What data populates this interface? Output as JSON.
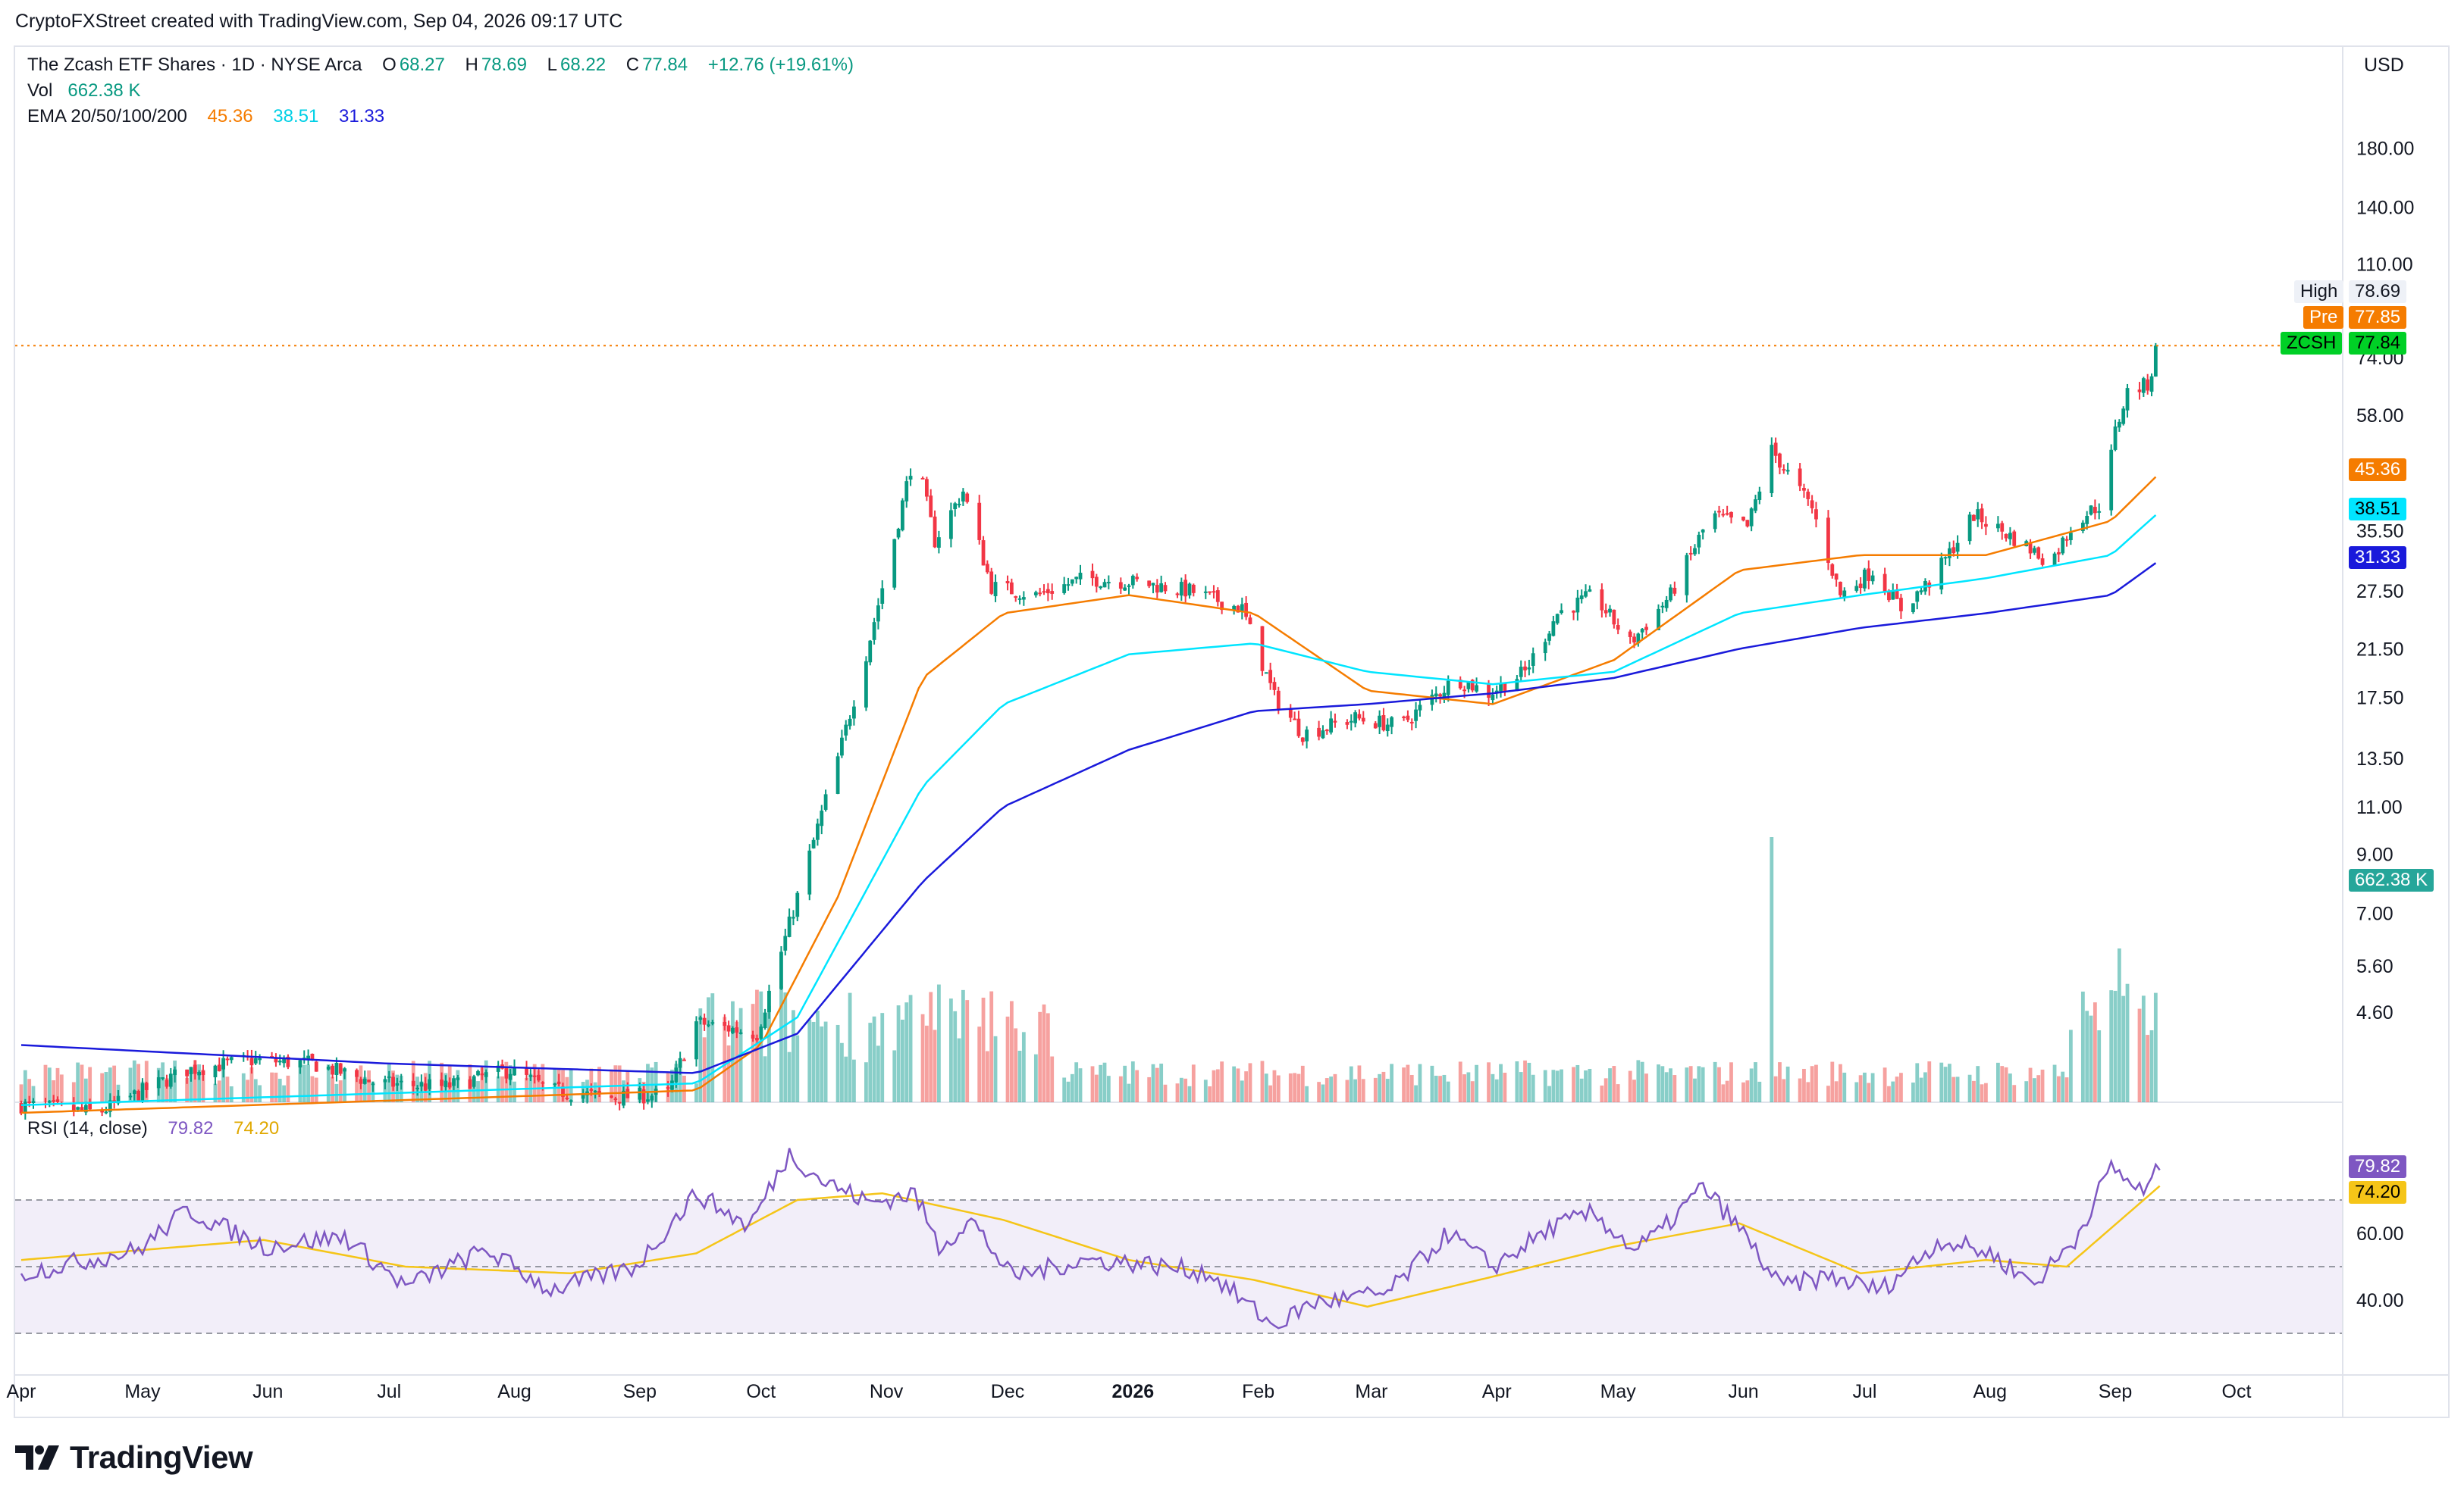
{
  "header": {
    "caption": "CryptoFXStreet created with TradingView.com, Sep 04, 2026 09:17 UTC"
  },
  "legend": {
    "symbol": "The Zcash ETF Shares · 1D · NYSE Arca",
    "o_label": "O",
    "o_value": "68.27",
    "h_label": "H",
    "h_value": "78.69",
    "l_label": "L",
    "l_value": "68.22",
    "c_label": "C",
    "c_value": "77.84",
    "change": "+12.76 (+19.61%)",
    "vol_label": "Vol",
    "vol_value": "662.38 K",
    "ema_label": "EMA 20/50/100/200",
    "ema20": "45.36",
    "ema50": "38.51",
    "ema100": "31.33"
  },
  "rsi_legend": {
    "label": "RSI (14, close)",
    "rsi": "79.82",
    "ma": "74.20"
  },
  "currency": "USD",
  "tags": {
    "high_label": "High",
    "high_value": "78.69",
    "pre_label": "Pre",
    "pre_value": "77.85",
    "ticker": "ZCSH",
    "last_value": "77.84",
    "ema20": "45.36",
    "ema50": "38.51",
    "ema100": "31.33",
    "volume": "662.38 K",
    "rsi": "79.82",
    "rsi_ma": "74.20"
  },
  "colors": {
    "up": "#089981",
    "down": "#f23645",
    "ema20": "#f57c00",
    "ema50": "#00e5ff",
    "ema100": "#1a1adb",
    "rsi": "#7e57c2",
    "rsi_ma": "#f5c518",
    "pre": "#f57c00",
    "last": "#00d026"
  },
  "footer": {
    "brand": "TradingView",
    "logo_icon": "tradingview-logo-icon"
  },
  "chart_data": {
    "type": "candlestick",
    "price_scale": "log",
    "price_ticks": [
      "180.00",
      "140.00",
      "110.00",
      "74.00",
      "58.00",
      "35.50",
      "27.50",
      "21.50",
      "17.50",
      "13.50",
      "11.00",
      "9.00",
      "7.00",
      "5.60",
      "4.60"
    ],
    "rsi_ticks": [
      "60.00",
      "40.00"
    ],
    "rsi_bands": [
      70,
      50,
      30
    ],
    "x_ticks": [
      "Apr",
      "May",
      "Jun",
      "Jul",
      "Aug",
      "Sep",
      "Oct",
      "Nov",
      "Dec",
      "2026",
      "Feb",
      "Mar",
      "Apr",
      "May",
      "Jun",
      "Jul",
      "Aug",
      "Sep",
      "Oct"
    ],
    "price_anchors": [
      [
        "2025-04-01",
        3.1
      ],
      [
        "2025-04-20",
        3.0
      ],
      [
        "2025-05-12",
        3.6
      ],
      [
        "2025-05-28",
        3.75
      ],
      [
        "2025-06-12",
        3.7
      ],
      [
        "2025-06-28",
        3.4
      ],
      [
        "2025-07-15",
        3.35
      ],
      [
        "2025-07-31",
        3.6
      ],
      [
        "2025-08-10",
        3.3
      ],
      [
        "2025-08-25",
        3.2
      ],
      [
        "2025-09-08",
        3.25
      ],
      [
        "2025-09-15",
        4.4
      ],
      [
        "2025-09-30",
        4.2
      ],
      [
        "2025-10-07",
        6.3
      ],
      [
        "2025-10-20",
        13.5
      ],
      [
        "2025-10-27",
        21.0
      ],
      [
        "2025-11-04",
        37.0
      ],
      [
        "2025-11-08",
        50.0
      ],
      [
        "2025-11-13",
        34.0
      ],
      [
        "2025-11-20",
        42.0
      ],
      [
        "2025-11-27",
        28.0
      ],
      [
        "2025-12-08",
        27.0
      ],
      [
        "2025-12-20",
        29.0
      ],
      [
        "2026-01-02",
        28.5
      ],
      [
        "2026-01-15",
        27.5
      ],
      [
        "2026-01-28",
        25.5
      ],
      [
        "2026-02-05",
        17.5
      ],
      [
        "2026-02-12",
        15.0
      ],
      [
        "2026-02-25",
        16.0
      ],
      [
        "2026-03-08",
        15.5
      ],
      [
        "2026-03-22",
        19.0
      ],
      [
        "2026-03-30",
        17.8
      ],
      [
        "2026-04-08",
        19.5
      ],
      [
        "2026-04-16",
        25.0
      ],
      [
        "2026-04-25",
        27.0
      ],
      [
        "2026-05-04",
        22.0
      ],
      [
        "2026-05-14",
        27.0
      ],
      [
        "2026-05-24",
        38.0
      ],
      [
        "2026-06-02",
        36.0
      ],
      [
        "2026-06-08",
        50.0
      ],
      [
        "2026-06-18",
        39.0
      ],
      [
        "2026-06-25",
        27.0
      ],
      [
        "2026-07-03",
        30.0
      ],
      [
        "2026-07-10",
        25.5
      ],
      [
        "2026-07-18",
        29.0
      ],
      [
        "2026-07-28",
        38.0
      ],
      [
        "2026-08-08",
        34.0
      ],
      [
        "2026-08-16",
        31.0
      ],
      [
        "2026-08-22",
        37.0
      ],
      [
        "2026-08-29",
        40.0
      ],
      [
        "2026-09-01",
        54.0
      ],
      [
        "2026-09-04",
        64.0
      ],
      [
        "2026-09-09",
        66.0
      ],
      [
        "2026-09-12",
        77.84
      ]
    ],
    "ema_anchors": {
      "ema20": [
        [
          "2025-04-01",
          3.0
        ],
        [
          "2025-09-15",
          3.3
        ],
        [
          "2025-10-01",
          4.0
        ],
        [
          "2025-10-20",
          7.5
        ],
        [
          "2025-11-10",
          19.0
        ],
        [
          "2025-11-30",
          25.0
        ],
        [
          "2025-12-31",
          27.0
        ],
        [
          "2026-01-31",
          25.0
        ],
        [
          "2026-02-28",
          18.0
        ],
        [
          "2026-03-31",
          17.0
        ],
        [
          "2026-04-30",
          20.5
        ],
        [
          "2026-05-31",
          30.0
        ],
        [
          "2026-06-30",
          32.0
        ],
        [
          "2026-07-31",
          32.0
        ],
        [
          "2026-08-31",
          37.0
        ],
        [
          "2026-09-12",
          45.36
        ]
      ],
      "ema50": [
        [
          "2025-04-01",
          3.1
        ],
        [
          "2025-09-15",
          3.4
        ],
        [
          "2025-10-10",
          4.5
        ],
        [
          "2025-11-10",
          12.0
        ],
        [
          "2025-11-30",
          17.0
        ],
        [
          "2025-12-31",
          21.0
        ],
        [
          "2026-01-31",
          22.0
        ],
        [
          "2026-02-28",
          19.5
        ],
        [
          "2026-03-31",
          18.5
        ],
        [
          "2026-04-30",
          19.5
        ],
        [
          "2026-05-31",
          25.0
        ],
        [
          "2026-06-30",
          27.0
        ],
        [
          "2026-07-31",
          29.0
        ],
        [
          "2026-08-31",
          32.0
        ],
        [
          "2026-09-12",
          38.51
        ]
      ],
      "ema100": [
        [
          "2025-04-01",
          4.0
        ],
        [
          "2025-06-30",
          3.7
        ],
        [
          "2025-09-15",
          3.55
        ],
        [
          "2025-10-10",
          4.2
        ],
        [
          "2025-11-10",
          8.0
        ],
        [
          "2025-11-30",
          11.0
        ],
        [
          "2025-12-31",
          14.0
        ],
        [
          "2026-01-31",
          16.5
        ],
        [
          "2026-02-28",
          17.0
        ],
        [
          "2026-03-31",
          17.8
        ],
        [
          "2026-04-30",
          19.0
        ],
        [
          "2026-05-31",
          21.5
        ],
        [
          "2026-06-30",
          23.5
        ],
        [
          "2026-07-31",
          25.0
        ],
        [
          "2026-08-31",
          27.0
        ],
        [
          "2026-09-12",
          31.33
        ]
      ]
    },
    "rsi_anchors": [
      [
        "2025-04-01",
        48
      ],
      [
        "2025-04-30",
        55
      ],
      [
        "2025-05-12",
        67
      ],
      [
        "2025-05-31",
        56
      ],
      [
        "2025-06-20",
        59
      ],
      [
        "2025-07-05",
        44
      ],
      [
        "2025-07-25",
        55
      ],
      [
        "2025-08-10",
        43
      ],
      [
        "2025-08-31",
        50
      ],
      [
        "2025-09-15",
        72
      ],
      [
        "2025-09-28",
        62
      ],
      [
        "2025-10-08",
        84
      ],
      [
        "2025-10-16",
        76
      ],
      [
        "2025-10-28",
        69
      ],
      [
        "2025-11-08",
        72
      ],
      [
        "2025-11-14",
        56
      ],
      [
        "2025-11-22",
        64
      ],
      [
        "2025-12-02",
        47
      ],
      [
        "2025-12-20",
        52
      ],
      [
        "2026-01-03",
        51
      ],
      [
        "2026-01-20",
        48
      ],
      [
        "2026-02-05",
        32
      ],
      [
        "2026-02-14",
        39
      ],
      [
        "2026-03-05",
        42
      ],
      [
        "2026-03-20",
        60
      ],
      [
        "2026-03-31",
        50
      ],
      [
        "2026-04-15",
        62
      ],
      [
        "2026-04-25",
        66
      ],
      [
        "2026-05-05",
        55
      ],
      [
        "2026-05-12",
        61
      ],
      [
        "2026-05-22",
        74
      ],
      [
        "2026-06-01",
        60
      ],
      [
        "2026-06-10",
        44
      ],
      [
        "2026-06-22",
        47
      ],
      [
        "2026-07-05",
        43
      ],
      [
        "2026-07-20",
        58
      ],
      [
        "2026-08-01",
        54
      ],
      [
        "2026-08-12",
        45
      ],
      [
        "2026-08-22",
        58
      ],
      [
        "2026-08-31",
        80
      ],
      [
        "2026-09-08",
        72
      ],
      [
        "2026-09-12",
        79.82
      ]
    ],
    "rsi_ma_anchors": [
      [
        "2025-04-01",
        52
      ],
      [
        "2025-05-31",
        58
      ],
      [
        "2025-07-05",
        50
      ],
      [
        "2025-08-15",
        48
      ],
      [
        "2025-09-15",
        54
      ],
      [
        "2025-10-10",
        70
      ],
      [
        "2025-10-31",
        72
      ],
      [
        "2025-11-30",
        64
      ],
      [
        "2025-12-31",
        52
      ],
      [
        "2026-01-31",
        46
      ],
      [
        "2026-02-28",
        38
      ],
      [
        "2026-03-31",
        47
      ],
      [
        "2026-04-30",
        56
      ],
      [
        "2026-05-31",
        63
      ],
      [
        "2026-06-30",
        48
      ],
      [
        "2026-07-31",
        52
      ],
      [
        "2026-08-20",
        50
      ],
      [
        "2026-09-12",
        74.2
      ]
    ],
    "volume_spikes": [
      [
        "2026-06-08",
        1.0
      ],
      [
        "2026-09-12",
        0.69
      ],
      [
        "2026-09-02",
        0.58
      ]
    ],
    "last": {
      "open": 68.27,
      "high": 78.69,
      "low": 68.22,
      "close": 77.84,
      "pre": 77.85,
      "volume_k": 662.38,
      "rsi": 79.82,
      "rsi_ma": 74.2
    }
  }
}
